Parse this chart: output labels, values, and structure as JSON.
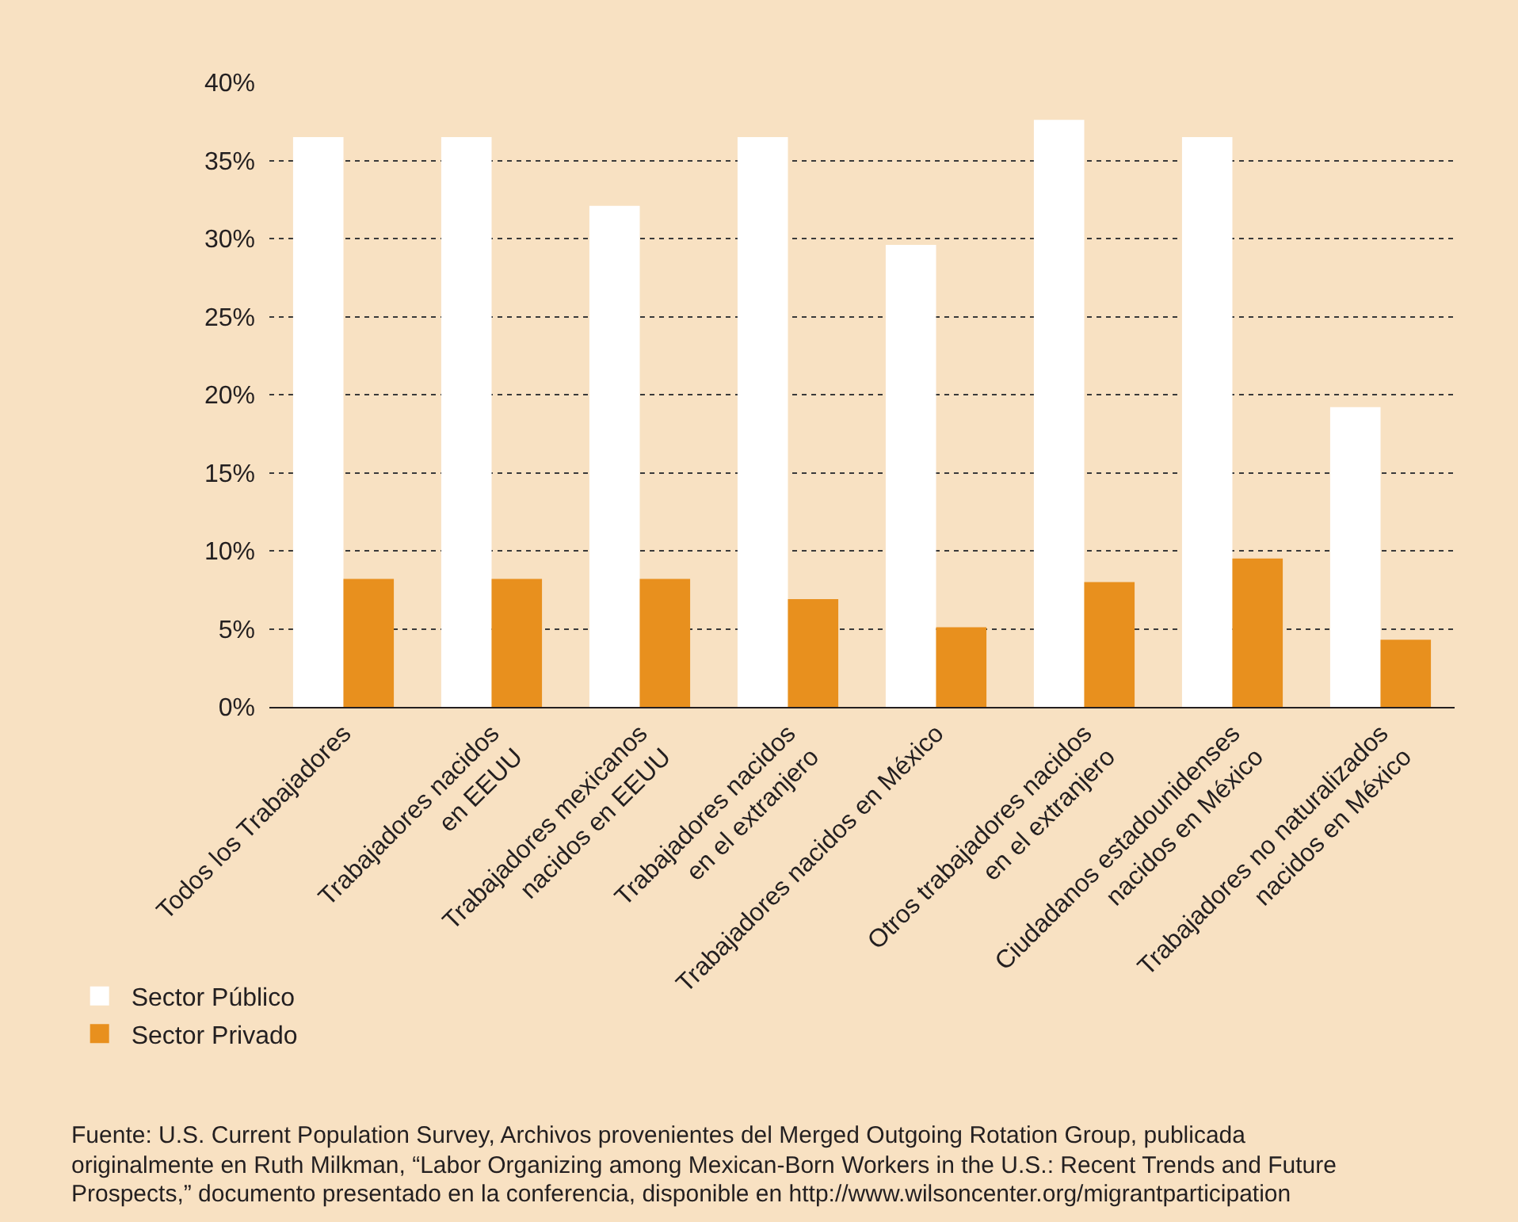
{
  "chart_data": {
    "type": "bar",
    "categories": [
      "Todos los Trabajadores",
      "Trabajadores nacidos en EEUU",
      "Trabajadores mexicanos nacidos en EEUU",
      "Trabajadores nacidos en el extranjero",
      "Trabajadores nacidos en México",
      "Otros trabajadores nacidos en el extranjero",
      "Ciudadanos estadounidenses nacidos en México",
      "Trabajadores no naturalizados nacidos en México"
    ],
    "series": [
      {
        "name": "Sector Público",
        "color": "#ffffff",
        "values": [
          36.5,
          36.5,
          32.1,
          36.5,
          29.6,
          37.6,
          36.5,
          19.2
        ]
      },
      {
        "name": "Sector Privado",
        "color": "#e8901e",
        "values": [
          8.2,
          8.2,
          8.2,
          6.9,
          5.1,
          8.0,
          9.5,
          4.3
        ]
      }
    ],
    "ylim": [
      0,
      40
    ],
    "yticks": [
      {
        "value": 0,
        "label": "0%"
      },
      {
        "value": 5,
        "label": "5%"
      },
      {
        "value": 10,
        "label": "10%"
      },
      {
        "value": 15,
        "label": "15%"
      },
      {
        "value": 20,
        "label": "20%"
      },
      {
        "value": 25,
        "label": "25%"
      },
      {
        "value": 30,
        "label": "30%"
      },
      {
        "value": 35,
        "label": "35%"
      },
      {
        "value": 40,
        "label": "40%"
      }
    ],
    "grid": "y",
    "legend": "bottom left",
    "annotations": [
      "Fuente: U.S. Current Population Survey, Archivos provenientes del Merged Outgoing Rotation Group, publicada",
      "originalmente en Ruth Milkman, “Labor Organizing among Mexican-Born Workers in the U.S.: Recent Trends and Future",
      "Prospects,” documento presentado en la conferencia, disponible en http://www.wilsoncenter.org/migrantparticipation"
    ]
  }
}
